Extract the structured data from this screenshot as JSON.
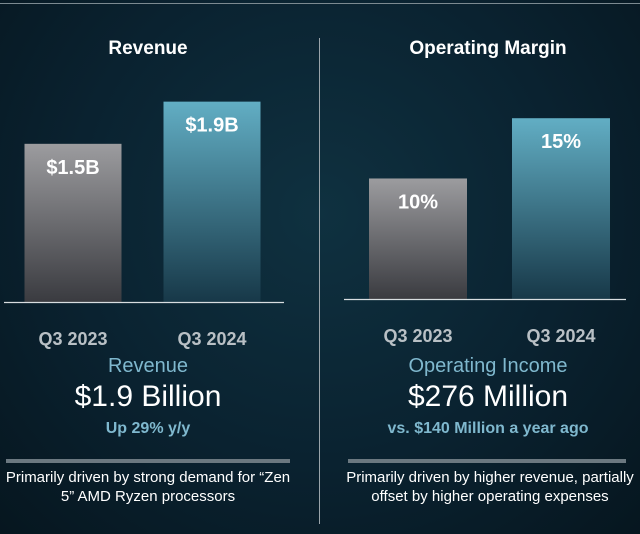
{
  "chart_data": [
    {
      "type": "bar",
      "title": "Revenue",
      "categories": [
        "Q3 2023",
        "Q3 2024"
      ],
      "values": [
        1.5,
        1.9
      ],
      "value_labels": [
        "$1.5B",
        "$1.9B"
      ],
      "unit": "B USD",
      "ylim": [
        0,
        2.2
      ],
      "grid": false,
      "colors": [
        "#9b9b9e",
        "#5fa6bd"
      ],
      "metric_name": "Revenue",
      "metric_value": "$1.9 Billion",
      "metric_delta": "Up 29% y/y",
      "note": "Primarily driven by strong demand for “Zen 5” AMD Ryzen processors"
    },
    {
      "type": "bar",
      "title": "Operating Margin",
      "categories": [
        "Q3 2023",
        "Q3 2024"
      ],
      "values": [
        10,
        15
      ],
      "value_labels": [
        "10%",
        "15%"
      ],
      "unit": "%",
      "ylim": [
        0,
        19
      ],
      "grid": false,
      "colors": [
        "#9b9b9e",
        "#5fa6bd"
      ],
      "metric_name": "Operating Income",
      "metric_value": "$276 Million",
      "metric_delta": "vs. $140 Million a year ago",
      "note": "Primarily driven by higher revenue, partially offset by higher operating expenses"
    }
  ],
  "colors": {
    "background": "#0a2230",
    "accent_text": "#7fb8ce",
    "bar_prior": "#9b9b9e",
    "bar_current": "#5fa6bd"
  }
}
